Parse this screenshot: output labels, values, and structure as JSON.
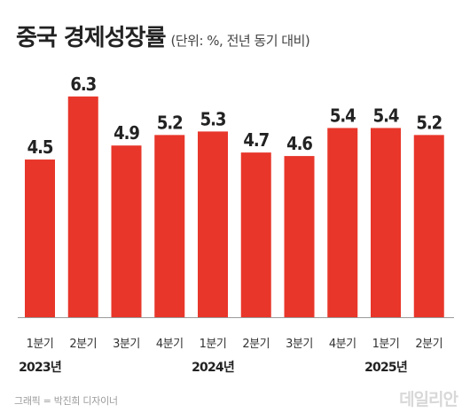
{
  "chart_data": {
    "type": "bar",
    "title": "중국 경제성장률",
    "subtitle": "(단위: %, 전년 동기 대비)",
    "categories": [
      "1분기",
      "2분기",
      "3분기",
      "4분기",
      "1분기",
      "2분기",
      "3분기",
      "4분기",
      "1분기",
      "2분기"
    ],
    "values": [
      4.5,
      6.3,
      4.9,
      5.2,
      5.3,
      4.7,
      4.6,
      5.4,
      5.4,
      5.2
    ],
    "data_labels": [
      "4.5",
      "6.3",
      "4.9",
      "5.2",
      "5.3",
      "4.7",
      "4.6",
      "5.4",
      "5.4",
      "5.2"
    ],
    "year_labels": [
      {
        "label": "2023년",
        "category_index": 0
      },
      {
        "label": "2024년",
        "category_index": 4
      },
      {
        "label": "2025년",
        "category_index": 8
      }
    ],
    "ylim": [
      0,
      6.6
    ],
    "grid": false,
    "xlabel": "",
    "ylabel": "",
    "bar_color": "#e8362a"
  },
  "footer": {
    "credit": "그래픽 = 박진희 디자이너",
    "logo": "데일리안"
  },
  "colors": {
    "bar": "#e8362a",
    "text": "#222222",
    "axis": "#9a9a9a"
  }
}
